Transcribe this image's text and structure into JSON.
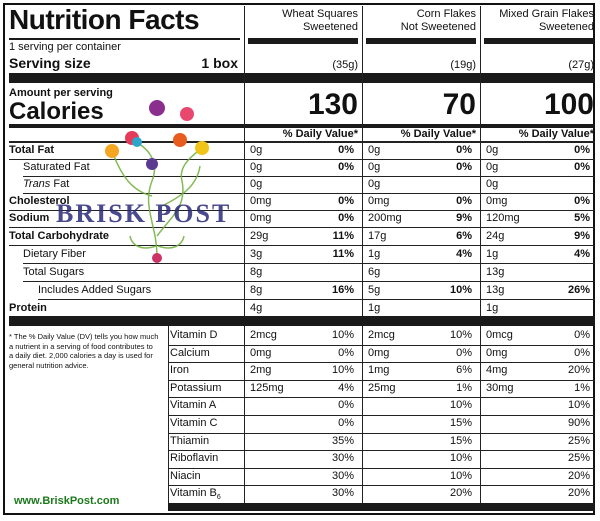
{
  "title": "Nutrition Facts",
  "servings_line": "1 serving per container",
  "serving_size_label": "Serving size",
  "serving_size_value": "1 box",
  "amount_per_serving": "Amount per serving",
  "calories_label": "Calories",
  "dv_header": "% Daily Value*",
  "products": [
    {
      "name_line1": "Wheat Squares",
      "name_line2": "Sweetened",
      "serving": "(35g)",
      "calories": "130"
    },
    {
      "name_line1": "Corn Flakes",
      "name_line2": "Not Sweetened",
      "serving": "(19g)",
      "calories": "70"
    },
    {
      "name_line1": "Mixed Grain Flakes",
      "name_line2": "Sweetened",
      "serving": "(27g)",
      "calories": "100"
    }
  ],
  "nutrients": [
    {
      "label": "Total Fat",
      "values": [
        [
          "0g",
          "0%"
        ],
        [
          "0g",
          "0%"
        ],
        [
          "0g",
          "0%"
        ]
      ]
    },
    {
      "label": "Saturated Fat",
      "values": [
        [
          "0g",
          "0%"
        ],
        [
          "0g",
          "0%"
        ],
        [
          "0g",
          "0%"
        ]
      ]
    },
    {
      "label_italic": "Trans",
      "label_rest": " Fat",
      "values": [
        [
          "0g",
          ""
        ],
        [
          "0g",
          ""
        ],
        [
          "0g",
          ""
        ]
      ]
    },
    {
      "label": "Cholesterol",
      "values": [
        [
          "0mg",
          "0%"
        ],
        [
          "0mg",
          "0%"
        ],
        [
          "0mg",
          "0%"
        ]
      ]
    },
    {
      "label": "Sodium",
      "values": [
        [
          "0mg",
          "0%"
        ],
        [
          "200mg",
          "9%"
        ],
        [
          "120mg",
          "5%"
        ]
      ]
    },
    {
      "label": "Total Carbohydrate",
      "values": [
        [
          "29g",
          "11%"
        ],
        [
          "17g",
          "6%"
        ],
        [
          "24g",
          "9%"
        ]
      ]
    },
    {
      "label": "Dietary Fiber",
      "values": [
        [
          "3g",
          "11%"
        ],
        [
          "1g",
          "4%"
        ],
        [
          "1g",
          "4%"
        ]
      ]
    },
    {
      "label": "Total Sugars",
      "values": [
        [
          "8g",
          ""
        ],
        [
          "6g",
          ""
        ],
        [
          "13g",
          ""
        ]
      ]
    },
    {
      "label": "Includes Added Sugars",
      "values": [
        [
          "8g",
          "16%"
        ],
        [
          "5g",
          "10%"
        ],
        [
          "13g",
          "26%"
        ]
      ]
    },
    {
      "label": "Protein",
      "values": [
        [
          "4g",
          ""
        ],
        [
          "1g",
          ""
        ],
        [
          "1g",
          ""
        ]
      ]
    }
  ],
  "footnote": "* The % Daily Value (DV) tells you how much a nutrient in a serving of food contributes to a daily diet. 2,000 calories a day is used for general nutrition advice.",
  "vitamins": [
    {
      "label": "Vitamin D",
      "values": [
        [
          "2mcg",
          "10%"
        ],
        [
          "2mcg",
          "10%"
        ],
        [
          "0mcg",
          "0%"
        ]
      ]
    },
    {
      "label": "Calcium",
      "values": [
        [
          "0mg",
          "0%"
        ],
        [
          "0mg",
          "0%"
        ],
        [
          "0mg",
          "0%"
        ]
      ]
    },
    {
      "label": "Iron",
      "values": [
        [
          "2mg",
          "10%"
        ],
        [
          "1mg",
          "6%"
        ],
        [
          "4mg",
          "20%"
        ]
      ]
    },
    {
      "label": "Potassium",
      "values": [
        [
          "125mg",
          "4%"
        ],
        [
          "25mg",
          "1%"
        ],
        [
          "30mg",
          "1%"
        ]
      ]
    },
    {
      "label": "Vitamin A",
      "values": [
        [
          "",
          "0%"
        ],
        [
          "",
          "10%"
        ],
        [
          "",
          "10%"
        ]
      ]
    },
    {
      "label": "Vitamin C",
      "values": [
        [
          "",
          "0%"
        ],
        [
          "",
          "15%"
        ],
        [
          "",
          "90%"
        ]
      ]
    },
    {
      "label": "Thiamin",
      "values": [
        [
          "",
          "35%"
        ],
        [
          "",
          "15%"
        ],
        [
          "",
          "25%"
        ]
      ]
    },
    {
      "label": "Riboflavin",
      "values": [
        [
          "",
          "30%"
        ],
        [
          "",
          "10%"
        ],
        [
          "",
          "25%"
        ]
      ]
    },
    {
      "label": "Niacin",
      "values": [
        [
          "",
          "30%"
        ],
        [
          "",
          "10%"
        ],
        [
          "",
          "20%"
        ]
      ]
    },
    {
      "label": "Vitamin B",
      "label_sub": "6",
      "values": [
        [
          "",
          "30%"
        ],
        [
          "",
          "20%"
        ],
        [
          "",
          "20%"
        ]
      ]
    }
  ],
  "watermark": "BRISK POST",
  "website": "www.BriskPost.com"
}
